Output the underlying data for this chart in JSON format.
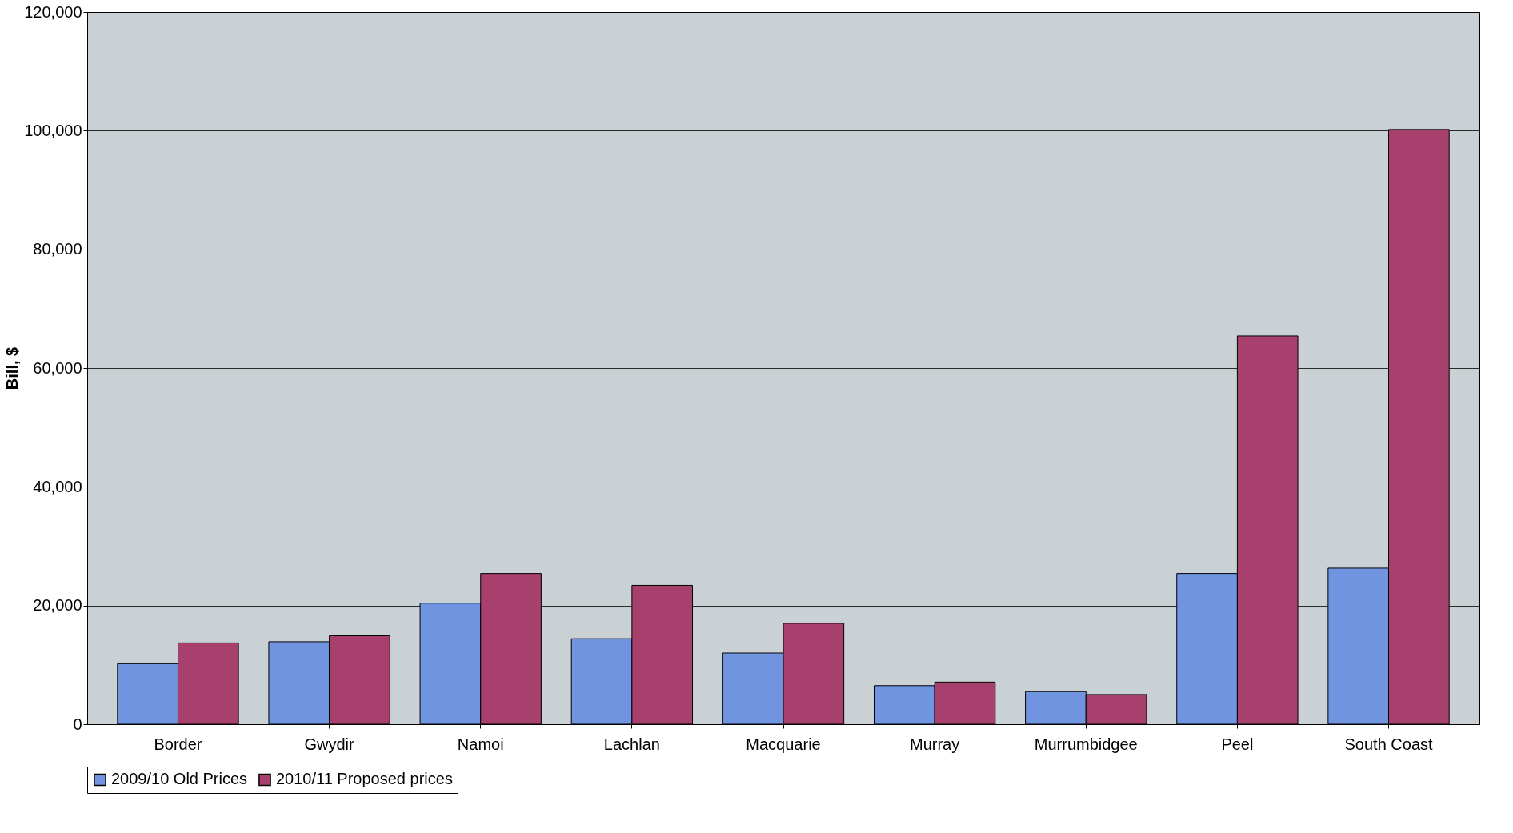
{
  "chart_data": {
    "type": "bar",
    "ylabel": "Bill, $",
    "categories": [
      "Border",
      "Gwydir",
      "Namoi",
      "Lachlan",
      "Macquarie",
      "Murray",
      "Murrumbidgee",
      "Peel",
      "South Coast"
    ],
    "series": [
      {
        "name": "2009/10 Old Prices",
        "color": "#7094e0",
        "values": [
          10200,
          13900,
          20400,
          14400,
          12000,
          6500,
          5500,
          25400,
          26300
        ]
      },
      {
        "name": "2010/11 Proposed prices",
        "color": "#a8406e",
        "values": [
          13700,
          14900,
          25400,
          23400,
          17000,
          7100,
          5000,
          65400,
          100200
        ]
      }
    ],
    "ylim": [
      0,
      120000
    ],
    "yticks": [
      0,
      {
        "value": 20000,
        "label": "20,000"
      },
      {
        "value": 40000,
        "label": "40,000"
      },
      {
        "value": 60000,
        "label": "60,000"
      },
      {
        "value": 80000,
        "label": "80,000"
      },
      {
        "value": 100000,
        "label": "100,000"
      },
      {
        "value": 120000,
        "label": "120,000"
      }
    ],
    "grid": "y",
    "legend": "bottom"
  }
}
